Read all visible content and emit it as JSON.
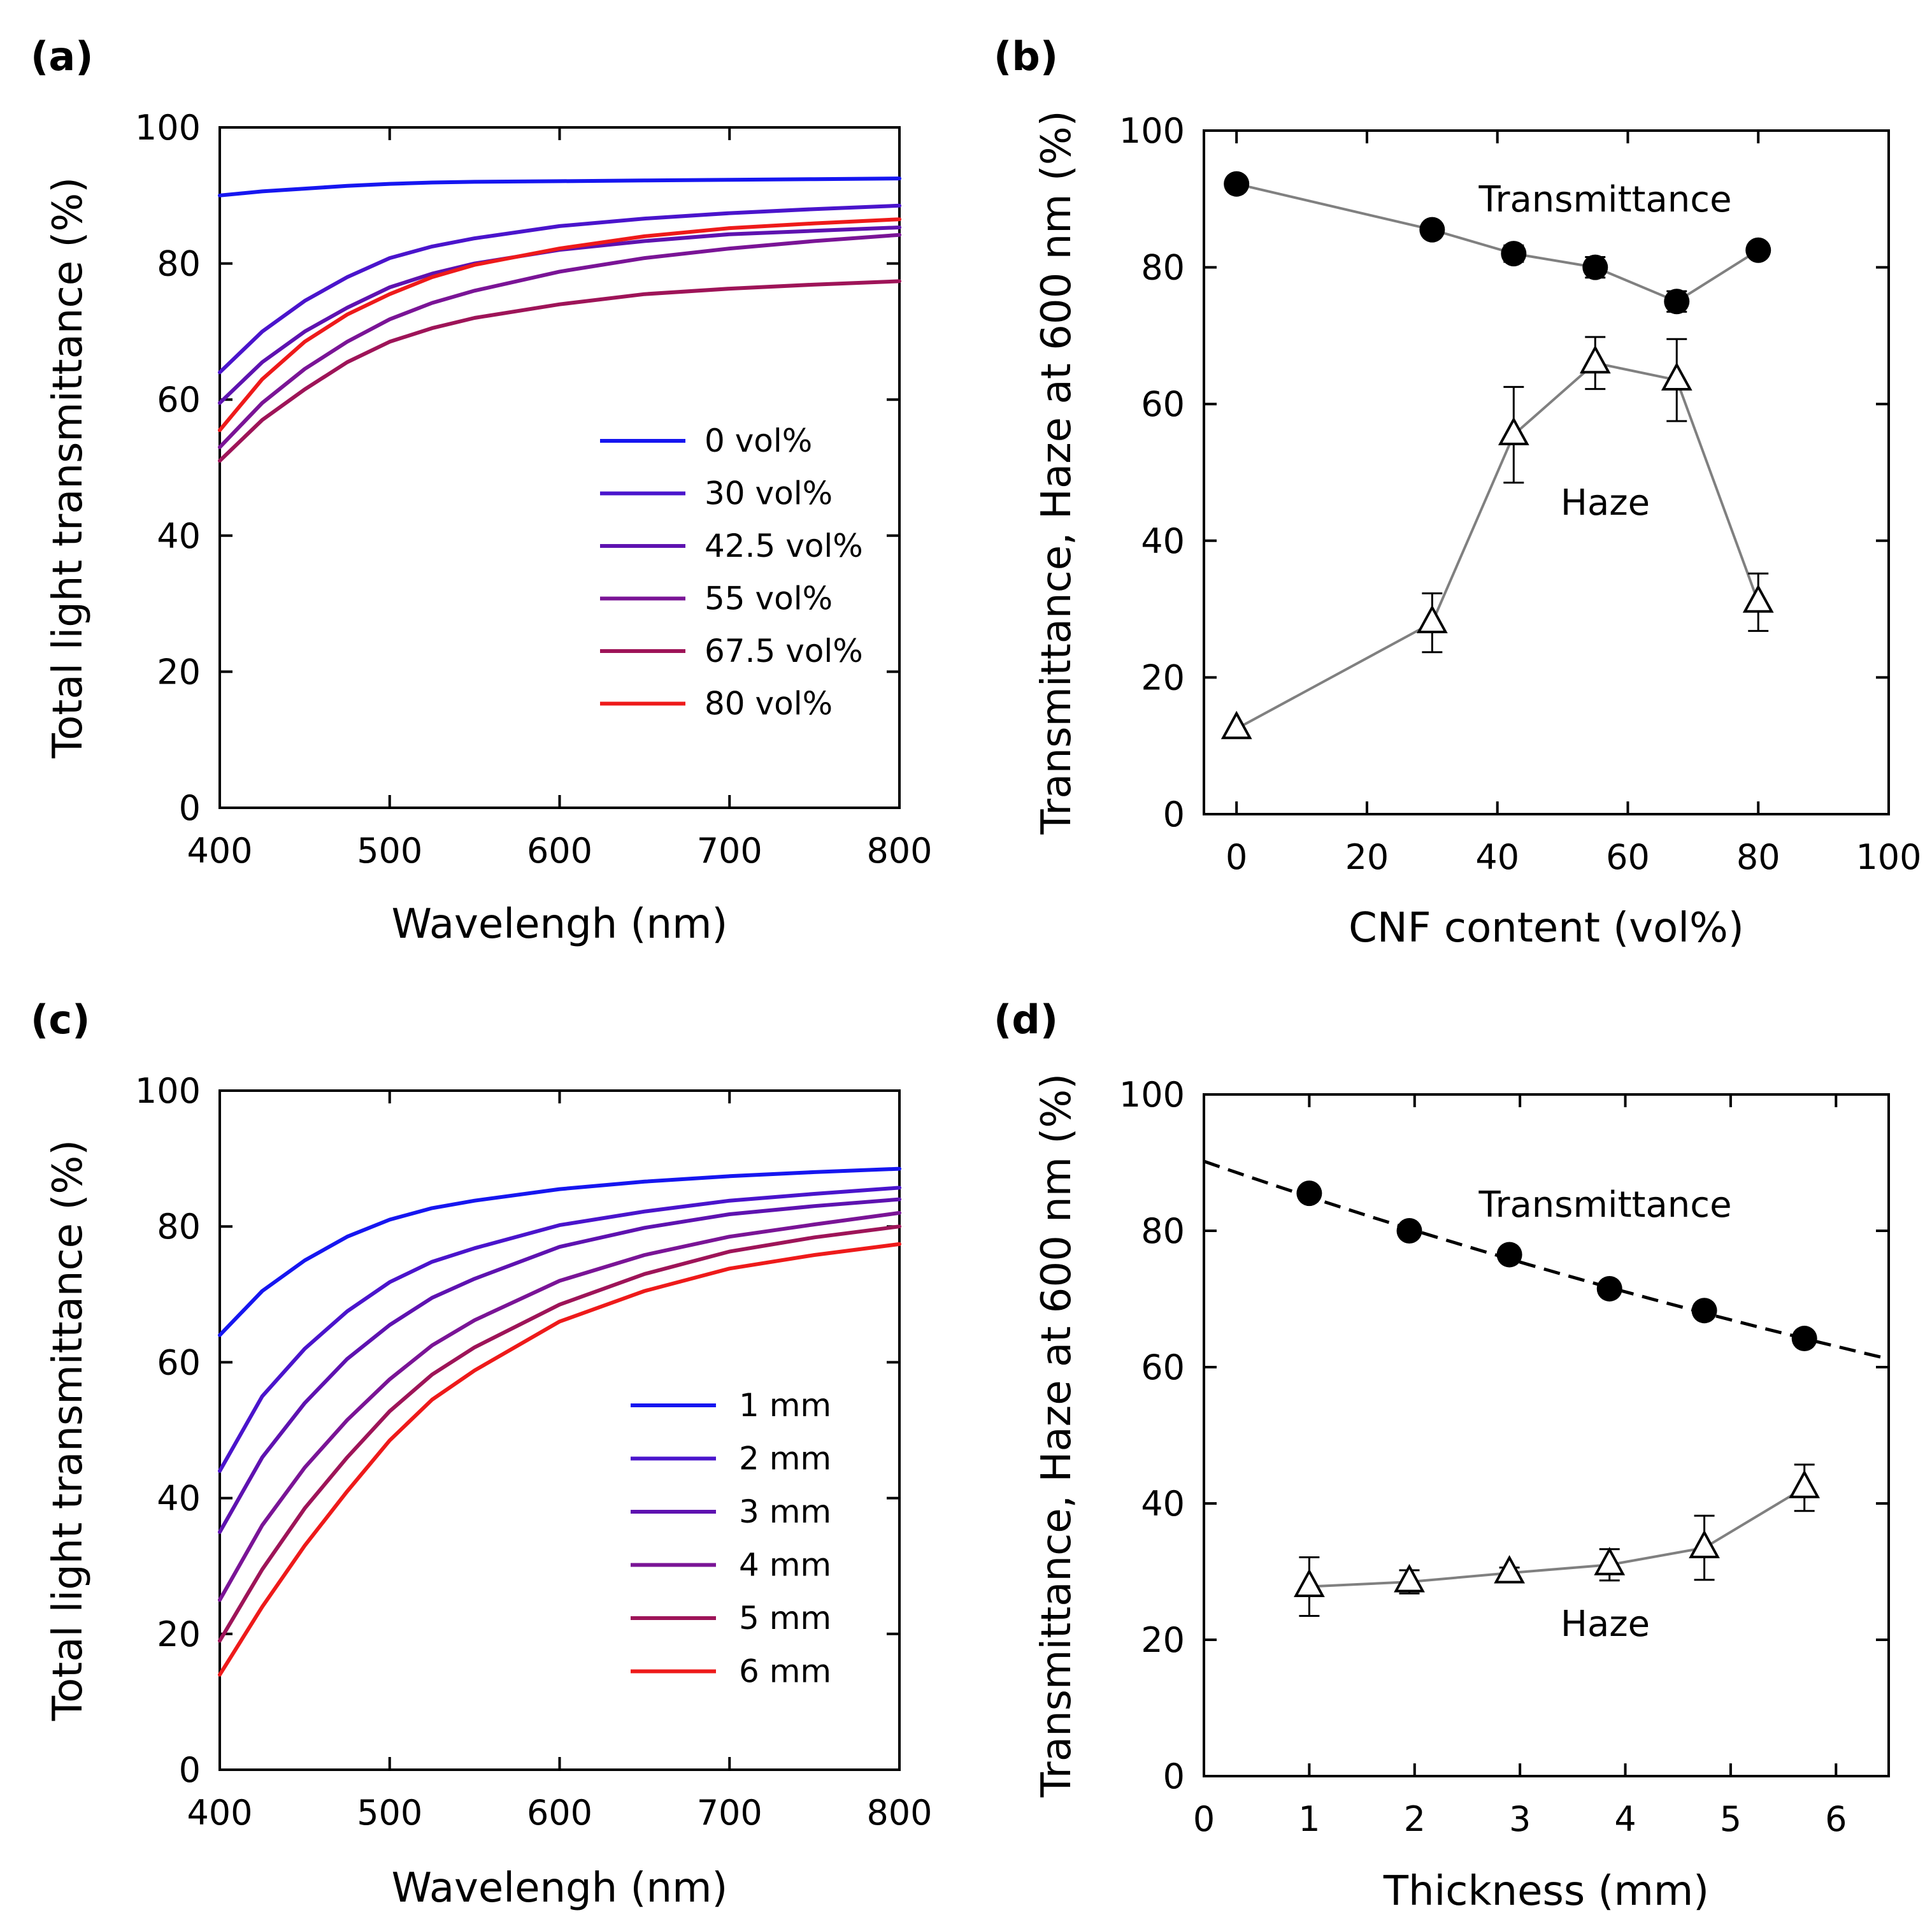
{
  "figure": {
    "panels": [
      "(a)",
      "(b)",
      "(c)",
      "(d)"
    ]
  },
  "chart_data": [
    {
      "panel": "(a)",
      "type": "line",
      "xlabel": "Wavelengh (nm)",
      "ylabel": "Total light transmittance (%)",
      "xlim": [
        400,
        800
      ],
      "ylim": [
        0,
        100
      ],
      "xticks": [
        400,
        500,
        600,
        700,
        800
      ],
      "yticks": [
        0,
        20,
        40,
        60,
        80,
        100
      ],
      "x": [
        400,
        425,
        450,
        475,
        500,
        525,
        550,
        600,
        650,
        700,
        750,
        800
      ],
      "legend_position": "right",
      "series": [
        {
          "name": "0 vol%",
          "color": "#1616f0",
          "values": [
            90,
            90.6,
            91,
            91.4,
            91.7,
            91.9,
            92,
            92.1,
            92.2,
            92.3,
            92.4,
            92.5
          ]
        },
        {
          "name": "30 vol%",
          "color": "#4a14cc",
          "values": [
            64,
            70,
            74.5,
            78,
            80.8,
            82.5,
            83.7,
            85.5,
            86.6,
            87.4,
            88,
            88.5
          ]
        },
        {
          "name": "42.5 vol%",
          "color": "#5e12b0",
          "values": [
            59.5,
            65.5,
            70,
            73.5,
            76.5,
            78.5,
            80,
            82,
            83.3,
            84.3,
            84.8,
            85.3
          ]
        },
        {
          "name": "55 vol%",
          "color": "#7a1496",
          "values": [
            53,
            59.5,
            64.5,
            68.5,
            71.8,
            74.2,
            76,
            78.8,
            80.8,
            82.2,
            83.3,
            84.2
          ]
        },
        {
          "name": "67.5 vol%",
          "color": "#9e1458",
          "values": [
            51,
            57,
            61.5,
            65.5,
            68.5,
            70.5,
            72,
            74,
            75.5,
            76.3,
            76.9,
            77.4
          ]
        },
        {
          "name": "80 vol%",
          "color": "#ee1a1a",
          "values": [
            55.5,
            63,
            68.5,
            72.5,
            75.5,
            78,
            79.8,
            82.2,
            84,
            85.2,
            85.9,
            86.5
          ]
        }
      ]
    },
    {
      "panel": "(b)",
      "type": "scatter",
      "xlabel": "CNF content (vol%)",
      "ylabel": "Transmittance, Haze at 600 nm (%)",
      "xlim": [
        -5,
        100
      ],
      "ylim": [
        0,
        100
      ],
      "xticks": [
        0,
        20,
        40,
        60,
        80,
        100
      ],
      "yticks": [
        0,
        20,
        40,
        60,
        80,
        100
      ],
      "annotations": [
        "Transmittance",
        "Haze"
      ],
      "series": [
        {
          "name": "Transmittance",
          "marker": "filled-circle",
          "x": [
            0,
            30,
            42.5,
            55,
            67.5,
            80
          ],
          "values": [
            92.2,
            85.5,
            82,
            80,
            75,
            82.5
          ],
          "errors": [
            0,
            0,
            1.2,
            1.5,
            1.5,
            0
          ]
        },
        {
          "name": "Haze",
          "marker": "open-triangle",
          "x": [
            0,
            30,
            42.5,
            55,
            67.5,
            80
          ],
          "values": [
            12.5,
            28,
            55.5,
            66,
            63.5,
            31
          ],
          "errors": [
            0,
            4.3,
            7,
            3.8,
            6,
            4.2
          ]
        }
      ]
    },
    {
      "panel": "(c)",
      "type": "line",
      "xlabel": "Wavelengh (nm)",
      "ylabel": "Total light transmittance (%)",
      "xlim": [
        400,
        800
      ],
      "ylim": [
        0,
        100
      ],
      "xticks": [
        400,
        500,
        600,
        700,
        800
      ],
      "yticks": [
        0,
        20,
        40,
        60,
        80,
        100
      ],
      "x": [
        400,
        425,
        450,
        475,
        500,
        525,
        550,
        600,
        650,
        700,
        750,
        800
      ],
      "legend_position": "right",
      "series": [
        {
          "name": "1 mm",
          "color": "#1616f0",
          "values": [
            64,
            70.5,
            75,
            78.5,
            81,
            82.7,
            83.8,
            85.5,
            86.6,
            87.4,
            88,
            88.5
          ]
        },
        {
          "name": "2 mm",
          "color": "#4a14cc",
          "values": [
            44,
            55,
            62,
            67.5,
            71.8,
            74.8,
            76.8,
            80.2,
            82.2,
            83.8,
            84.8,
            85.7
          ]
        },
        {
          "name": "3 mm",
          "color": "#5e12b0",
          "values": [
            35,
            46,
            54,
            60.5,
            65.5,
            69.5,
            72.3,
            77,
            79.8,
            81.8,
            83,
            84
          ]
        },
        {
          "name": "4 mm",
          "color": "#7a1496",
          "values": [
            25,
            36,
            44.5,
            51.5,
            57.5,
            62.5,
            66.2,
            72,
            75.8,
            78.5,
            80.3,
            82
          ]
        },
        {
          "name": "5 mm",
          "color": "#9e1458",
          "values": [
            19,
            29.5,
            38.5,
            46,
            52.8,
            58.2,
            62.2,
            68.5,
            73,
            76.3,
            78.4,
            80
          ]
        },
        {
          "name": "6 mm",
          "color": "#ee1a1a",
          "values": [
            14,
            24,
            33,
            41,
            48.5,
            54.5,
            58.8,
            66,
            70.5,
            73.8,
            75.8,
            77.4
          ]
        }
      ]
    },
    {
      "panel": "(d)",
      "type": "scatter",
      "xlabel": "Thickness (mm)",
      "ylabel": "Transmittance, Haze at 600 nm (%)",
      "xlim": [
        0,
        6.5
      ],
      "ylim": [
        0,
        100
      ],
      "xticks": [
        0,
        1,
        2,
        3,
        4,
        5,
        6
      ],
      "yticks": [
        0,
        20,
        40,
        60,
        80,
        100
      ],
      "annotations": [
        "Transmittance",
        "Haze"
      ],
      "fit_curve": {
        "style": "dashed",
        "x": [
          0,
          6.5
        ],
        "values": [
          90.2,
          61.2
        ]
      },
      "series": [
        {
          "name": "Transmittance",
          "marker": "filled-circle",
          "x": [
            1,
            1.95,
            2.9,
            3.85,
            4.75,
            5.7
          ],
          "values": [
            85.5,
            80,
            76.5,
            71.5,
            68.3,
            64.2
          ],
          "errors": [
            0,
            0,
            0,
            0,
            0,
            0
          ]
        },
        {
          "name": "Haze",
          "marker": "open-triangle",
          "x": [
            1,
            1.95,
            2.9,
            3.85,
            4.75,
            5.7
          ],
          "values": [
            27.8,
            28.5,
            29.8,
            31,
            33.5,
            42.3
          ],
          "errors": [
            4.3,
            1.7,
            0.8,
            2.3,
            4.7,
            3.4
          ]
        }
      ]
    }
  ]
}
